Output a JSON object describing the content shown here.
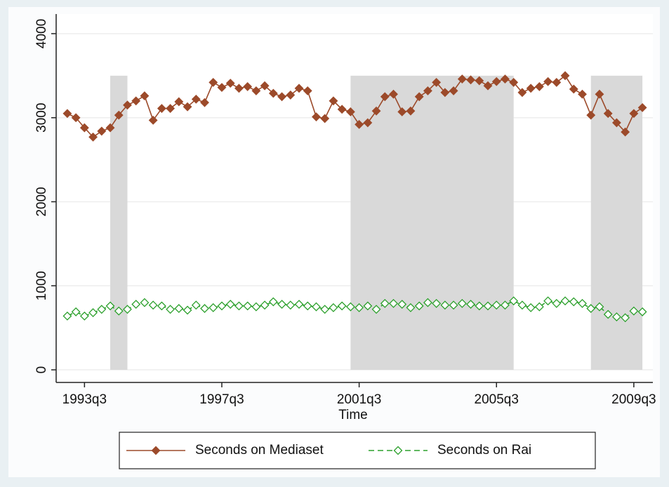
{
  "chart_data": {
    "type": "line",
    "xlabel": "Time",
    "x": [
      132,
      133,
      134,
      135,
      136,
      137,
      138,
      139,
      140,
      141,
      142,
      143,
      144,
      145,
      146,
      147,
      148,
      149,
      150,
      151,
      152,
      153,
      154,
      155,
      156,
      157,
      158,
      159,
      160,
      161,
      162,
      163,
      164,
      165,
      166,
      167,
      168,
      169,
      170,
      171,
      172,
      173,
      174,
      175,
      176,
      177,
      178,
      179,
      180,
      181,
      182,
      183,
      184,
      185,
      186,
      187,
      188,
      189,
      190,
      191,
      192,
      193,
      194,
      195,
      196,
      197,
      198,
      199
    ],
    "series": [
      {
        "name": "Seconds on Mediaset",
        "color": "#9c4a2a",
        "marker": "diamond-filled",
        "dash": false,
        "values": [
          3050,
          3000,
          2880,
          2770,
          2840,
          2880,
          3030,
          3150,
          3200,
          3260,
          2970,
          3110,
          3110,
          3190,
          3130,
          3220,
          3180,
          3420,
          3360,
          3410,
          3350,
          3370,
          3320,
          3380,
          3290,
          3250,
          3270,
          3350,
          3320,
          3010,
          2990,
          3200,
          3100,
          3070,
          2920,
          2940,
          3080,
          3250,
          3280,
          3070,
          3080,
          3250,
          3320,
          3420,
          3300,
          3320,
          3460,
          3450,
          3440,
          3380,
          3430,
          3460,
          3420,
          3300,
          3350,
          3370,
          3430,
          3420,
          3500,
          3340,
          3280,
          3030,
          3280,
          3050,
          2940,
          2830,
          3050,
          3120
        ]
      },
      {
        "name": "Seconds on Rai",
        "color": "#2ca02c",
        "marker": "diamond-hollow",
        "dash": true,
        "values": [
          640,
          690,
          640,
          680,
          720,
          760,
          700,
          720,
          780,
          800,
          770,
          760,
          720,
          730,
          710,
          770,
          730,
          740,
          760,
          780,
          760,
          760,
          750,
          770,
          810,
          780,
          770,
          780,
          760,
          750,
          720,
          740,
          760,
          750,
          740,
          760,
          720,
          790,
          790,
          780,
          740,
          760,
          800,
          790,
          770,
          770,
          790,
          780,
          760,
          760,
          770,
          770,
          820,
          770,
          740,
          750,
          820,
          790,
          820,
          810,
          790,
          730,
          750,
          660,
          630,
          620,
          700,
          690
        ]
      }
    ],
    "shaded_regions": [
      {
        "start": 137,
        "end": 139
      },
      {
        "start": 165,
        "end": 184
      },
      {
        "start": 193,
        "end": 199
      }
    ],
    "shade_top": 3500,
    "shade_color": "#d9d9d9",
    "xlim": [
      130.7,
      199.4
    ],
    "xticks": [
      {
        "value": 134,
        "label": "1993q3"
      },
      {
        "value": 150,
        "label": "1997q3"
      },
      {
        "value": 166,
        "label": "2001q3"
      },
      {
        "value": 182,
        "label": "2005q3"
      },
      {
        "value": 198,
        "label": "2009q3"
      }
    ],
    "ylim": [
      -150,
      4150
    ],
    "yticks": [
      0,
      1000,
      2000,
      3000,
      4000
    ],
    "grid": true,
    "legend": "bottom"
  }
}
